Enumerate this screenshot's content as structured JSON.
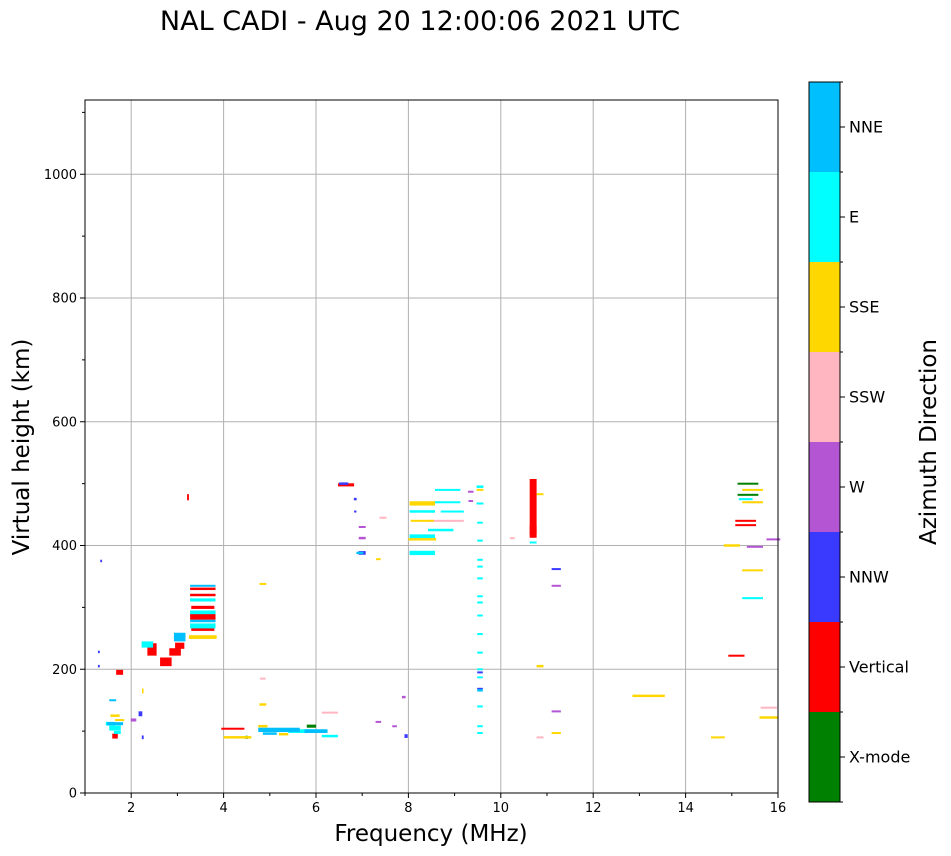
{
  "chart_data": {
    "type": "scatter",
    "title": "NAL CADI - Aug 20 12:00:06 2021 UTC",
    "xlabel": "Frequency (MHz)",
    "ylabel": "Virtual height (km)",
    "xlim": [
      1,
      16
    ],
    "ylim": [
      0,
      1120
    ],
    "xticks": [
      2,
      4,
      6,
      8,
      10,
      12,
      14,
      16
    ],
    "yticks": [
      0,
      200,
      400,
      600,
      800,
      1000
    ],
    "grid": true,
    "colorbar": {
      "label": "Azimuth Direction",
      "categories": [
        {
          "name": "X-mode",
          "color": "#008000"
        },
        {
          "name": "Vertical",
          "color": "#ff0000"
        },
        {
          "name": "NNW",
          "color": "#3a3aff"
        },
        {
          "name": "W",
          "color": "#b455d4"
        },
        {
          "name": "SSW",
          "color": "#ffb6c1"
        },
        {
          "name": "SSE",
          "color": "#ffd700"
        },
        {
          "name": "E",
          "color": "#00ffff"
        },
        {
          "name": "NNE",
          "color": "#00bfff"
        }
      ]
    },
    "series": [
      {
        "name": "Vertical",
        "points": [
          [
            1.75,
            195,
            0.15,
            8
          ],
          [
            1.65,
            92,
            0.12,
            8
          ],
          [
            2.45,
            232,
            0.2,
            20
          ],
          [
            2.75,
            212,
            0.25,
            14
          ],
          [
            2.95,
            228,
            0.25,
            12
          ],
          [
            3.05,
            238,
            0.2,
            10
          ],
          [
            3.55,
            265,
            0.5,
            6
          ],
          [
            3.55,
            285,
            0.55,
            10
          ],
          [
            3.55,
            300,
            0.5,
            5
          ],
          [
            3.55,
            320,
            0.55,
            4
          ],
          [
            3.55,
            330,
            0.55,
            4
          ],
          [
            3.23,
            478,
            0.04,
            10
          ],
          [
            4.2,
            104,
            0.5,
            3
          ],
          [
            6.65,
            498,
            0.35,
            5
          ],
          [
            10.7,
            460,
            0.15,
            95
          ],
          [
            10.7,
            425,
            0.15,
            15
          ],
          [
            15.1,
            222,
            0.35,
            3
          ],
          [
            15.3,
            433,
            0.45,
            3
          ],
          [
            15.3,
            440,
            0.45,
            3
          ]
        ]
      },
      {
        "name": "X-mode",
        "points": [
          [
            5.9,
            108,
            0.2,
            5
          ],
          [
            15.35,
            500,
            0.45,
            3
          ],
          [
            15.35,
            482,
            0.45,
            3
          ],
          [
            4.5,
            90,
            0.05,
            5
          ]
        ]
      },
      {
        "name": "NNW",
        "points": [
          [
            1.35,
            375,
            0.04,
            4
          ],
          [
            1.3,
            228,
            0.04,
            4
          ],
          [
            1.3,
            205,
            0.04,
            4
          ],
          [
            2.25,
            90,
            0.04,
            6
          ],
          [
            6.6,
            500,
            0.2,
            4
          ],
          [
            6.85,
            475,
            0.06,
            4
          ],
          [
            6.85,
            455,
            0.05,
            3
          ],
          [
            7.0,
            388,
            0.15,
            6
          ],
          [
            7.95,
            92,
            0.07,
            6
          ],
          [
            9.55,
            168,
            0.12,
            4
          ],
          [
            9.55,
            195,
            0.12,
            3
          ],
          [
            11.2,
            362,
            0.2,
            3
          ],
          [
            2.2,
            128,
            0.08,
            8
          ]
        ]
      },
      {
        "name": "W",
        "points": [
          [
            7.0,
            430,
            0.15,
            3
          ],
          [
            7.0,
            412,
            0.15,
            4
          ],
          [
            7.9,
            155,
            0.08,
            4
          ],
          [
            7.7,
            108,
            0.1,
            3
          ],
          [
            7.35,
            115,
            0.12,
            3
          ],
          [
            9.35,
            487,
            0.12,
            3
          ],
          [
            9.35,
            472,
            0.1,
            3
          ],
          [
            11.2,
            335,
            0.2,
            3
          ],
          [
            11.2,
            132,
            0.2,
            3
          ],
          [
            15.9,
            410,
            0.3,
            3
          ],
          [
            15.5,
            398,
            0.35,
            3
          ],
          [
            2.05,
            118,
            0.12,
            5
          ]
        ]
      },
      {
        "name": "SSW",
        "points": [
          [
            4.85,
            185,
            0.12,
            3
          ],
          [
            6.3,
            130,
            0.35,
            3
          ],
          [
            7.45,
            445,
            0.15,
            3
          ],
          [
            8.7,
            440,
            0.5,
            3
          ],
          [
            9.05,
            440,
            0.3,
            3
          ],
          [
            10.85,
            90,
            0.15,
            3
          ],
          [
            15.8,
            138,
            0.35,
            3
          ],
          [
            15.5,
            470,
            0.3,
            3
          ],
          [
            10.25,
            412,
            0.1,
            3
          ]
        ]
      },
      {
        "name": "SSE",
        "points": [
          [
            1.65,
            125,
            0.2,
            4
          ],
          [
            1.75,
            118,
            0.2,
            3
          ],
          [
            2.25,
            165,
            0.03,
            8
          ],
          [
            3.55,
            252,
            0.6,
            6
          ],
          [
            4.85,
            338,
            0.15,
            3
          ],
          [
            4.85,
            143,
            0.15,
            4
          ],
          [
            4.3,
            90,
            0.6,
            4
          ],
          [
            4.85,
            108,
            0.2,
            4
          ],
          [
            5.3,
            95,
            0.2,
            4
          ],
          [
            7.35,
            378,
            0.1,
            3
          ],
          [
            8.3,
            468,
            0.55,
            7
          ],
          [
            8.3,
            410,
            0.6,
            4
          ],
          [
            8.3,
            440,
            0.5,
            3
          ],
          [
            9.55,
            490,
            0.15,
            3
          ],
          [
            10.85,
            483,
            0.15,
            3
          ],
          [
            10.85,
            205,
            0.15,
            4
          ],
          [
            11.2,
            97,
            0.2,
            3
          ],
          [
            13.2,
            157,
            0.7,
            4
          ],
          [
            14.7,
            90,
            0.3,
            3
          ],
          [
            15.0,
            400,
            0.35,
            4
          ],
          [
            15.45,
            470,
            0.45,
            3
          ],
          [
            15.45,
            490,
            0.45,
            3
          ],
          [
            15.45,
            360,
            0.45,
            3
          ],
          [
            15.8,
            122,
            0.4,
            4
          ]
        ]
      },
      {
        "name": "E",
        "points": [
          [
            1.65,
            105,
            0.25,
            8
          ],
          [
            1.55,
            112,
            0.2,
            6
          ],
          [
            1.7,
            98,
            0.15,
            5
          ],
          [
            2.35,
            240,
            0.25,
            10
          ],
          [
            3.55,
            270,
            0.55,
            8
          ],
          [
            3.55,
            292,
            0.55,
            6
          ],
          [
            3.55,
            312,
            0.55,
            5
          ],
          [
            5.7,
            100,
            0.6,
            6
          ],
          [
            6.3,
            92,
            0.35,
            4
          ],
          [
            8.3,
            388,
            0.55,
            7
          ],
          [
            8.3,
            415,
            0.55,
            6
          ],
          [
            8.3,
            455,
            0.55,
            4
          ],
          [
            8.7,
            425,
            0.55,
            4
          ],
          [
            8.85,
            490,
            0.55,
            3
          ],
          [
            8.85,
            470,
            0.55,
            3
          ],
          [
            8.95,
            455,
            0.5,
            3
          ],
          [
            9.55,
            495,
            0.15,
            4
          ],
          [
            9.55,
            468,
            0.15,
            3
          ],
          [
            9.55,
            437,
            0.12,
            3
          ],
          [
            9.55,
            408,
            0.12,
            3
          ],
          [
            9.55,
            377,
            0.12,
            3
          ],
          [
            9.55,
            366,
            0.12,
            3
          ],
          [
            9.55,
            347,
            0.12,
            3
          ],
          [
            9.55,
            318,
            0.12,
            3
          ],
          [
            9.55,
            308,
            0.12,
            3
          ],
          [
            9.55,
            287,
            0.12,
            3
          ],
          [
            9.55,
            257,
            0.12,
            3
          ],
          [
            9.55,
            227,
            0.12,
            3
          ],
          [
            9.55,
            200,
            0.12,
            3
          ],
          [
            9.55,
            187,
            0.12,
            3
          ],
          [
            9.55,
            140,
            0.12,
            3
          ],
          [
            9.55,
            108,
            0.12,
            3
          ],
          [
            9.55,
            97,
            0.12,
            3
          ],
          [
            10.7,
            405,
            0.15,
            3
          ],
          [
            15.45,
            315,
            0.45,
            3
          ],
          [
            15.3,
            475,
            0.3,
            3
          ]
        ]
      },
      {
        "name": "NNE",
        "points": [
          [
            1.65,
            112,
            0.35,
            5
          ],
          [
            1.6,
            150,
            0.15,
            3
          ],
          [
            3.05,
            252,
            0.25,
            14
          ],
          [
            3.55,
            278,
            0.55,
            4
          ],
          [
            3.55,
            335,
            0.55,
            3
          ],
          [
            5.2,
            102,
            0.9,
            7
          ],
          [
            6.0,
            100,
            0.5,
            6
          ],
          [
            5.0,
            96,
            0.3,
            4
          ],
          [
            9.55,
            166,
            0.12,
            4
          ],
          [
            6.95,
            388,
            0.15,
            4
          ]
        ]
      }
    ]
  }
}
